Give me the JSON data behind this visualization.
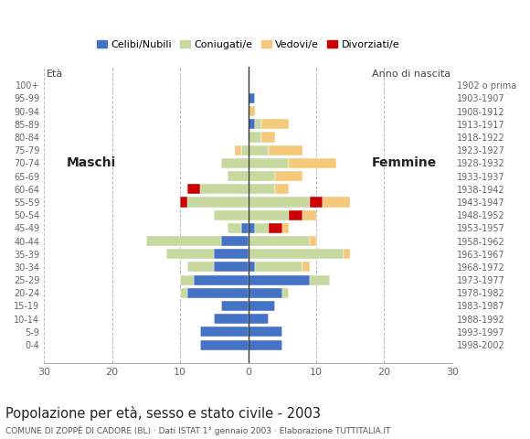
{
  "age_groups": [
    "0-4",
    "5-9",
    "10-14",
    "15-19",
    "20-24",
    "25-29",
    "30-34",
    "35-39",
    "40-44",
    "45-49",
    "50-54",
    "55-59",
    "60-64",
    "65-69",
    "70-74",
    "75-79",
    "80-84",
    "85-89",
    "90-94",
    "95-99",
    "100+"
  ],
  "birth_years": [
    "1998-2002",
    "1993-1997",
    "1988-1992",
    "1983-1987",
    "1978-1982",
    "1973-1977",
    "1968-1972",
    "1963-1967",
    "1958-1962",
    "1953-1957",
    "1948-1952",
    "1943-1947",
    "1938-1942",
    "1933-1937",
    "1928-1932",
    "1923-1927",
    "1918-1922",
    "1913-1917",
    "1908-1912",
    "1903-1907",
    "1902 o prima"
  ],
  "colors": {
    "celibi": "#4472C4",
    "coniugati": "#C8D9A0",
    "vedovi": "#F5C97A",
    "divorziati": "#CC0000"
  },
  "males": {
    "celibi": [
      7,
      7,
      5,
      4,
      9,
      8,
      5,
      5,
      4,
      1,
      0,
      0,
      0,
      0,
      0,
      0,
      0,
      0,
      0,
      0,
      0
    ],
    "coniugati": [
      0,
      0,
      0,
      0,
      1,
      2,
      4,
      7,
      11,
      2,
      5,
      9,
      7,
      3,
      4,
      1,
      0,
      0,
      0,
      0,
      0
    ],
    "vedovi": [
      0,
      0,
      0,
      0,
      0,
      0,
      0,
      0,
      0,
      0,
      0,
      0,
      0,
      0,
      0,
      1,
      0,
      0,
      0,
      0,
      0
    ],
    "divorziati": [
      0,
      0,
      0,
      0,
      0,
      0,
      0,
      0,
      0,
      0,
      0,
      1,
      2,
      0,
      0,
      0,
      0,
      0,
      0,
      0,
      0
    ]
  },
  "females": {
    "nubili": [
      5,
      5,
      3,
      4,
      5,
      9,
      1,
      0,
      0,
      1,
      0,
      0,
      0,
      0,
      0,
      0,
      0,
      1,
      0,
      1,
      0
    ],
    "coniugate": [
      0,
      0,
      0,
      0,
      1,
      3,
      7,
      14,
      9,
      2,
      6,
      9,
      4,
      4,
      6,
      3,
      2,
      1,
      0,
      0,
      0
    ],
    "vedove": [
      0,
      0,
      0,
      0,
      0,
      0,
      1,
      1,
      1,
      1,
      2,
      4,
      2,
      4,
      7,
      5,
      2,
      4,
      1,
      0,
      0
    ],
    "divorziate": [
      0,
      0,
      0,
      0,
      0,
      0,
      0,
      0,
      0,
      2,
      2,
      2,
      0,
      0,
      0,
      0,
      0,
      0,
      0,
      0,
      0
    ]
  },
  "title": "Popolazione per età, sesso e stato civile - 2003",
  "subtitle": "COMUNE DI ZOPPÈ DI CADORE (BL) · Dati ISTAT 1° gennaio 2003 · Elaborazione TUTTITALIA.IT",
  "xlabel_left": "Maschi",
  "xlabel_right": "Femmine",
  "ylabel_left": "Età",
  "ylabel_right": "Anno di nascita",
  "legend_labels": [
    "Celibi/Nubili",
    "Coniugati/e",
    "Vedovi/e",
    "Divorziati/e"
  ],
  "xlim": 30,
  "background_color": "#ffffff",
  "grid_color": "#bbbbbb"
}
